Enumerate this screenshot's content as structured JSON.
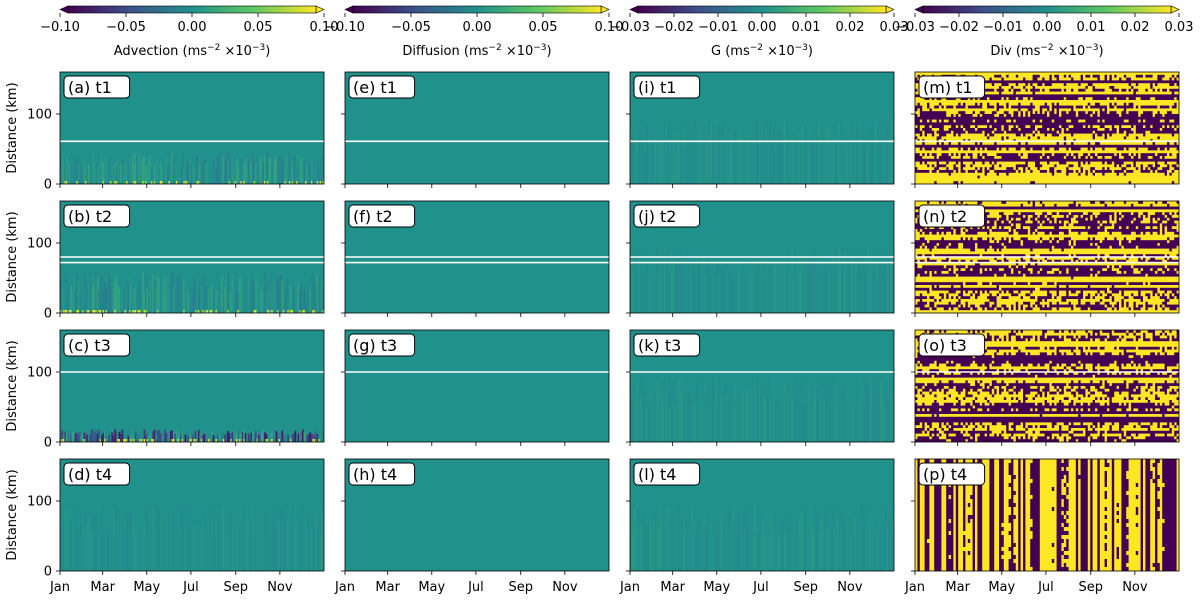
{
  "chart_data": {
    "type": "heatmap",
    "layout": "4 rows x 4 columns of heatmap panels with shared colorbars per column",
    "x_axis": {
      "ticklabels": [
        "Jan",
        "Mar",
        "May",
        "Jul",
        "Sep",
        "Nov"
      ],
      "tick_days": [
        0,
        59,
        120,
        181,
        243,
        304
      ],
      "range_days": [
        0,
        365
      ]
    },
    "y_axis": {
      "label": "Distance (km)",
      "ticks": [
        0,
        100
      ],
      "range": [
        0,
        160
      ]
    },
    "colormap": "viridis",
    "colormap_stops": [
      "#440154",
      "#3b528b",
      "#21918c",
      "#5ec962",
      "#fde725"
    ],
    "colorbar_extend": "both",
    "columns": [
      {
        "name": "Advection",
        "cbar_label_prefix": "Advection (ms",
        "cbar_label_suffix": "×10",
        "unit_exponent": "−2",
        "scale_exponent": "−3",
        "vmin": -0.1,
        "vmax": 0.1,
        "ticks": [
          "−0.10",
          "−0.05",
          "0.00",
          "0.05",
          "0.10"
        ],
        "tick_values": [
          -0.1,
          -0.05,
          0.0,
          0.05,
          0.1
        ]
      },
      {
        "name": "Diffusion",
        "cbar_label_prefix": "Diffusion (ms",
        "cbar_label_suffix": "×10",
        "unit_exponent": "−2",
        "scale_exponent": "−3",
        "vmin": -0.1,
        "vmax": 0.1,
        "ticks": [
          "−0.10",
          "−0.05",
          "0.00",
          "0.05",
          "0.10"
        ],
        "tick_values": [
          -0.1,
          -0.05,
          0.0,
          0.05,
          0.1
        ]
      },
      {
        "name": "G",
        "cbar_label_prefix": "G (ms",
        "cbar_label_suffix": "×10",
        "unit_exponent": "−2",
        "scale_exponent": "−3",
        "vmin": -0.03,
        "vmax": 0.03,
        "ticks": [
          "−0.03",
          "−0.02",
          "−0.01",
          "0.00",
          "0.01",
          "0.02",
          "0.03"
        ],
        "tick_values": [
          -0.03,
          -0.02,
          -0.01,
          0.0,
          0.01,
          0.02,
          0.03
        ]
      },
      {
        "name": "Div",
        "cbar_label_prefix": "Div (ms",
        "cbar_label_suffix": "×10",
        "unit_exponent": "−2",
        "scale_exponent": "−3",
        "vmin": -0.03,
        "vmax": 0.03,
        "ticks": [
          "−0.03",
          "−0.02",
          "−0.01",
          "0.00",
          "0.01",
          "0.02",
          "0.03"
        ],
        "tick_values": [
          -0.03,
          -0.02,
          -0.01,
          0.0,
          0.01,
          0.02,
          0.03
        ]
      }
    ],
    "panels": [
      {
        "label": "(a) t1",
        "row": 0,
        "col": 0,
        "white_lines_km": [
          61
        ],
        "pattern": "advection",
        "near_bottom_band_km": 45
      },
      {
        "label": "(e) t1",
        "row": 0,
        "col": 1,
        "white_lines_km": [
          61
        ],
        "pattern": "flat"
      },
      {
        "label": "(i) t1",
        "row": 0,
        "col": 2,
        "white_lines_km": [
          61
        ],
        "pattern": "faint"
      },
      {
        "label": "(m) t1",
        "row": 0,
        "col": 3,
        "white_lines_km": [
          61
        ],
        "pattern": "binary"
      },
      {
        "label": "(b) t2",
        "row": 1,
        "col": 0,
        "white_lines_km": [
          72,
          80
        ],
        "pattern": "advection",
        "near_bottom_band_km": 60
      },
      {
        "label": "(f) t2",
        "row": 1,
        "col": 1,
        "white_lines_km": [
          72,
          80
        ],
        "pattern": "flat"
      },
      {
        "label": "(j) t2",
        "row": 1,
        "col": 2,
        "white_lines_km": [
          72,
          80
        ],
        "pattern": "faint"
      },
      {
        "label": "(n) t2",
        "row": 1,
        "col": 3,
        "white_lines_km": [
          72,
          80
        ],
        "pattern": "binary"
      },
      {
        "label": "(c) t3",
        "row": 2,
        "col": 0,
        "white_lines_km": [
          100
        ],
        "pattern": "advection_strong",
        "near_bottom_band_km": 18
      },
      {
        "label": "(g) t3",
        "row": 2,
        "col": 1,
        "white_lines_km": [
          100
        ],
        "pattern": "flat"
      },
      {
        "label": "(k) t3",
        "row": 2,
        "col": 2,
        "white_lines_km": [
          100
        ],
        "pattern": "faint"
      },
      {
        "label": "(o) t3",
        "row": 2,
        "col": 3,
        "white_lines_km": [
          100
        ],
        "pattern": "binary"
      },
      {
        "label": "(d) t4",
        "row": 3,
        "col": 0,
        "white_lines_km": [],
        "pattern": "faint"
      },
      {
        "label": "(h) t4",
        "row": 3,
        "col": 1,
        "white_lines_km": [],
        "pattern": "flat"
      },
      {
        "label": "(l) t4",
        "row": 3,
        "col": 2,
        "white_lines_km": [],
        "pattern": "faint"
      },
      {
        "label": "(p) t4",
        "row": 3,
        "col": 3,
        "white_lines_km": [],
        "pattern": "binary_vertical"
      }
    ]
  }
}
